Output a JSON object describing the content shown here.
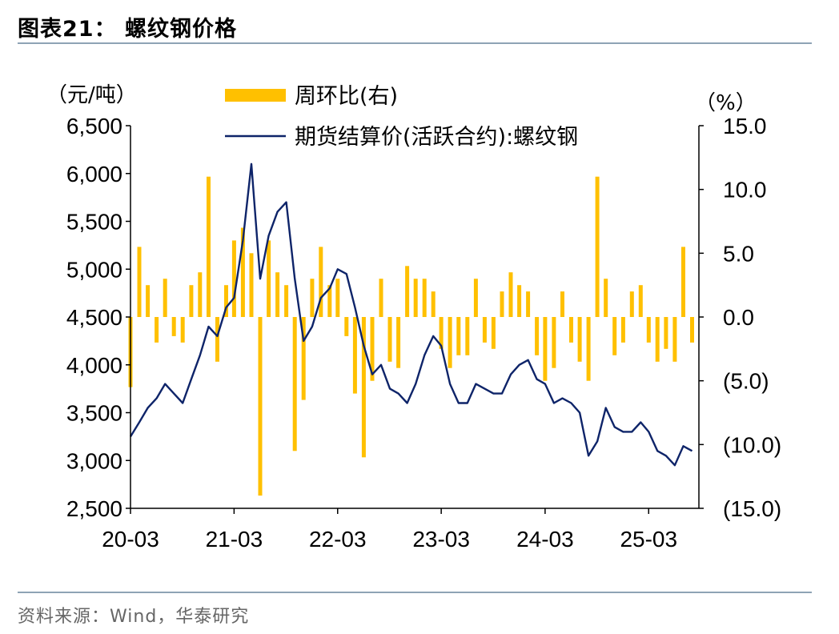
{
  "figure": {
    "title": "图表21：  螺纹钢价格",
    "source": "资料来源：Wind，华泰研究"
  },
  "colors": {
    "bar": "#FFC000",
    "line": "#0E2469",
    "rule": "#8EA3B5"
  },
  "chart_data": {
    "type": "bar",
    "title": "",
    "x_tick_labels": [
      "20-03",
      "21-03",
      "22-03",
      "23-03",
      "24-03",
      "25-03"
    ],
    "left_axis": {
      "unit_label": "（元/吨）",
      "ylim": [
        2500,
        6500
      ],
      "tick_values": [
        2500,
        3000,
        3500,
        4000,
        4500,
        5000,
        5500,
        6000,
        6500
      ],
      "tick_labels": [
        "2,500",
        "3,000",
        "3,500",
        "4,000",
        "4,500",
        "5,000",
        "5,500",
        "6,000",
        "6,500"
      ]
    },
    "right_axis": {
      "unit_label": "（%）",
      "ylim": [
        -15,
        15
      ],
      "tick_values": [
        15,
        10,
        5,
        0,
        -5,
        -10,
        -15
      ],
      "tick_labels": [
        "15.0",
        "10.0",
        "5.0",
        "0.0",
        "(5.0)",
        "(10.0)",
        "(15.0)"
      ]
    },
    "legend": [
      {
        "name": "周环比(右)",
        "kind": "bar"
      },
      {
        "name": "期货结算价(活跃合约):螺纹钢",
        "kind": "line"
      }
    ],
    "series": [
      {
        "name": "期货结算价(活跃合约):螺纹钢",
        "axis": "left",
        "kind": "line",
        "x": [
          "2020-03",
          "2020-04",
          "2020-05",
          "2020-06",
          "2020-07",
          "2020-08",
          "2020-09",
          "2020-10",
          "2020-11",
          "2020-12",
          "2021-01",
          "2021-02",
          "2021-03",
          "2021-04",
          "2021-05",
          "2021-06",
          "2021-07",
          "2021-08",
          "2021-09",
          "2021-10",
          "2021-11",
          "2021-12",
          "2022-01",
          "2022-02",
          "2022-03",
          "2022-04",
          "2022-05",
          "2022-06",
          "2022-07",
          "2022-08",
          "2022-09",
          "2022-10",
          "2022-11",
          "2022-12",
          "2023-01",
          "2023-02",
          "2023-03",
          "2023-04",
          "2023-05",
          "2023-06",
          "2023-07",
          "2023-08",
          "2023-09",
          "2023-10",
          "2023-11",
          "2023-12",
          "2024-01",
          "2024-02",
          "2024-03",
          "2024-04",
          "2024-05",
          "2024-06",
          "2024-07",
          "2024-08",
          "2024-09",
          "2024-10",
          "2024-11",
          "2024-12",
          "2025-01",
          "2025-02",
          "2025-03",
          "2025-04",
          "2025-05",
          "2025-06",
          "2025-07",
          "2025-08"
        ],
        "values": [
          3250,
          3400,
          3550,
          3650,
          3800,
          3700,
          3600,
          3850,
          4100,
          4400,
          4300,
          4600,
          4700,
          5300,
          6100,
          4900,
          5350,
          5600,
          5700,
          4900,
          4250,
          4400,
          4700,
          4800,
          5000,
          4950,
          4600,
          4200,
          3900,
          4000,
          3750,
          3700,
          3600,
          3800,
          4100,
          4300,
          4200,
          3800,
          3600,
          3600,
          3800,
          3750,
          3700,
          3700,
          3900,
          4000,
          4050,
          3850,
          3800,
          3600,
          3650,
          3600,
          3500,
          3050,
          3200,
          3550,
          3350,
          3300,
          3300,
          3400,
          3300,
          3100,
          3050,
          2950,
          3150,
          3100
        ]
      },
      {
        "name": "周环比(右)",
        "axis": "right",
        "kind": "bar",
        "x": [
          "2020-03",
          "2020-04",
          "2020-05",
          "2020-06",
          "2020-07",
          "2020-08",
          "2020-09",
          "2020-10",
          "2020-11",
          "2020-12",
          "2021-01",
          "2021-02",
          "2021-03",
          "2021-04",
          "2021-05",
          "2021-06",
          "2021-07",
          "2021-08",
          "2021-09",
          "2021-10",
          "2021-11",
          "2021-12",
          "2022-01",
          "2022-02",
          "2022-03",
          "2022-04",
          "2022-05",
          "2022-06",
          "2022-07",
          "2022-08",
          "2022-09",
          "2022-10",
          "2022-11",
          "2022-12",
          "2023-01",
          "2023-02",
          "2023-03",
          "2023-04",
          "2023-05",
          "2023-06",
          "2023-07",
          "2023-08",
          "2023-09",
          "2023-10",
          "2023-11",
          "2023-12",
          "2024-01",
          "2024-02",
          "2024-03",
          "2024-04",
          "2024-05",
          "2024-06",
          "2024-07",
          "2024-08",
          "2024-09",
          "2024-10",
          "2024-11",
          "2024-12",
          "2025-01",
          "2025-02",
          "2025-03",
          "2025-04",
          "2025-05",
          "2025-06",
          "2025-07",
          "2025-08"
        ],
        "values": [
          -5.5,
          5.5,
          2.5,
          -2.0,
          3.0,
          -1.5,
          -2.0,
          2.5,
          3.5,
          11.0,
          -3.5,
          2.5,
          6.0,
          7.0,
          5.0,
          -14.0,
          6.0,
          3.5,
          2.5,
          -10.5,
          -6.5,
          3.0,
          5.5,
          2.5,
          3.0,
          -1.5,
          -6.0,
          -11.0,
          -5.0,
          3.0,
          -3.5,
          -4.0,
          4.0,
          3.0,
          3.0,
          2.0,
          -2.5,
          -4.0,
          -3.0,
          -3.0,
          3.0,
          -2.0,
          -2.5,
          2.0,
          3.5,
          2.5,
          2.0,
          -3.0,
          -5.0,
          -4.0,
          2.0,
          -2.0,
          -3.5,
          -5.0,
          11.0,
          3.0,
          -3.0,
          -2.0,
          2.0,
          2.5,
          -2.0,
          -3.5,
          -2.5,
          -3.5,
          5.5,
          -2.0
        ]
      }
    ]
  }
}
